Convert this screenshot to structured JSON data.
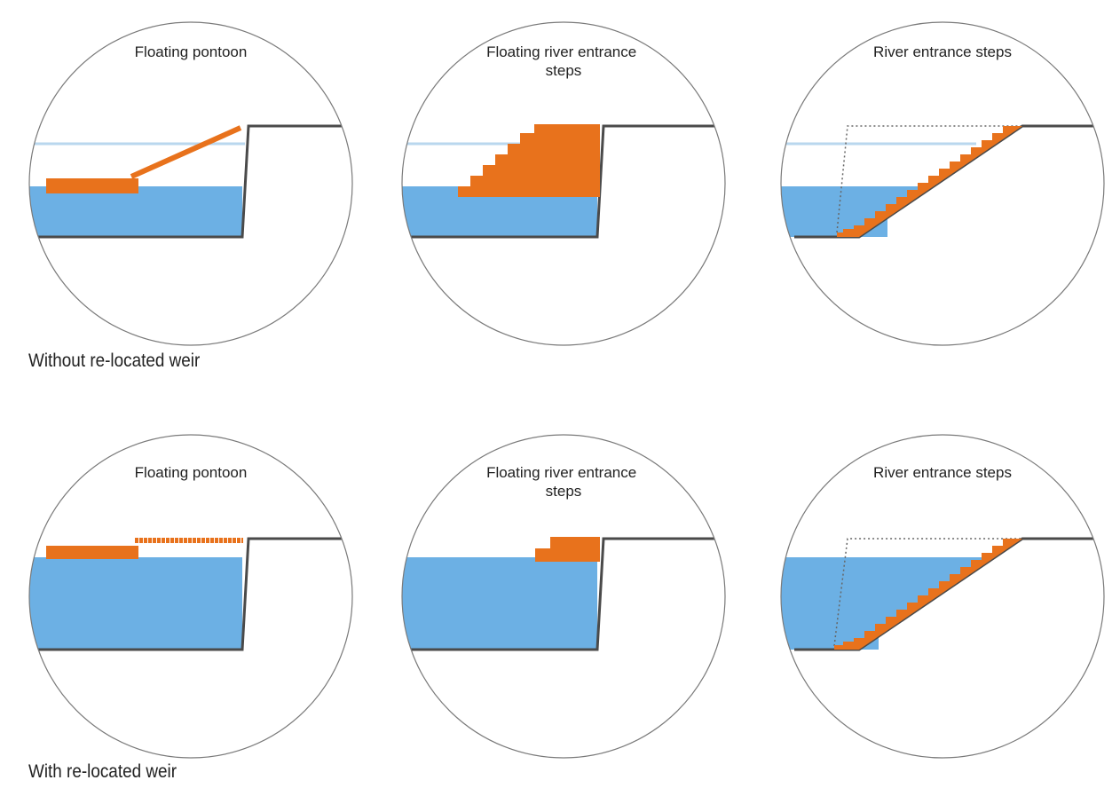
{
  "colors": {
    "water": "#6CB0E4",
    "water_high_line": "#B9D7EE",
    "structure": "#E8721C",
    "ground": "#4a4a4a",
    "circle": "#7a7a7a",
    "dotted": "#666666"
  },
  "rows": [
    {
      "label": "Without re-located weir",
      "water_level": "low",
      "panels": [
        {
          "title_lines": [
            "Floating pontoon"
          ],
          "type": "pontoon"
        },
        {
          "title_lines": [
            "Floating river entrance",
            "steps"
          ],
          "type": "floating-steps"
        },
        {
          "title_lines": [
            "River entrance steps"
          ],
          "type": "fixed-steps"
        }
      ]
    },
    {
      "label": "With re-located weir",
      "water_level": "high",
      "panels": [
        {
          "title_lines": [
            "Floating pontoon"
          ],
          "type": "pontoon"
        },
        {
          "title_lines": [
            "Floating river entrance",
            "steps"
          ],
          "type": "floating-steps"
        },
        {
          "title_lines": [
            "River entrance steps"
          ],
          "type": "fixed-steps"
        }
      ]
    }
  ]
}
